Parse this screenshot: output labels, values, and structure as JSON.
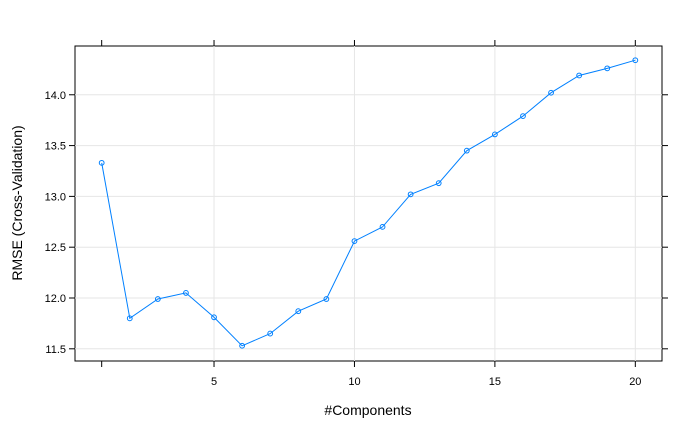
{
  "chart_data": {
    "type": "line",
    "xlabel": "#Components",
    "ylabel": "RMSE (Cross-Validation)",
    "xlim": [
      0.05,
      20.95
    ],
    "ylim": [
      11.38,
      14.48
    ],
    "x_ticks": [
      5,
      10,
      15,
      20
    ],
    "y_ticks": [
      11.5,
      12.0,
      12.5,
      13.0,
      13.5,
      14.0
    ],
    "y_tick_labels": [
      "11.5",
      "12.0",
      "12.5",
      "13.0",
      "13.5",
      "14.0"
    ],
    "grid": true,
    "marker": "open-circle",
    "series": [
      {
        "color": "#0080ff",
        "x": [
          1,
          2,
          3,
          4,
          5,
          6,
          7,
          8,
          9,
          10,
          11,
          12,
          13,
          14,
          15,
          16,
          17,
          18,
          19,
          20
        ],
        "values": [
          13.33,
          11.8,
          11.99,
          12.05,
          11.81,
          11.53,
          11.65,
          11.87,
          11.99,
          12.56,
          12.7,
          13.02,
          13.13,
          13.45,
          13.61,
          13.79,
          14.02,
          14.19,
          14.26,
          14.34
        ]
      }
    ]
  }
}
